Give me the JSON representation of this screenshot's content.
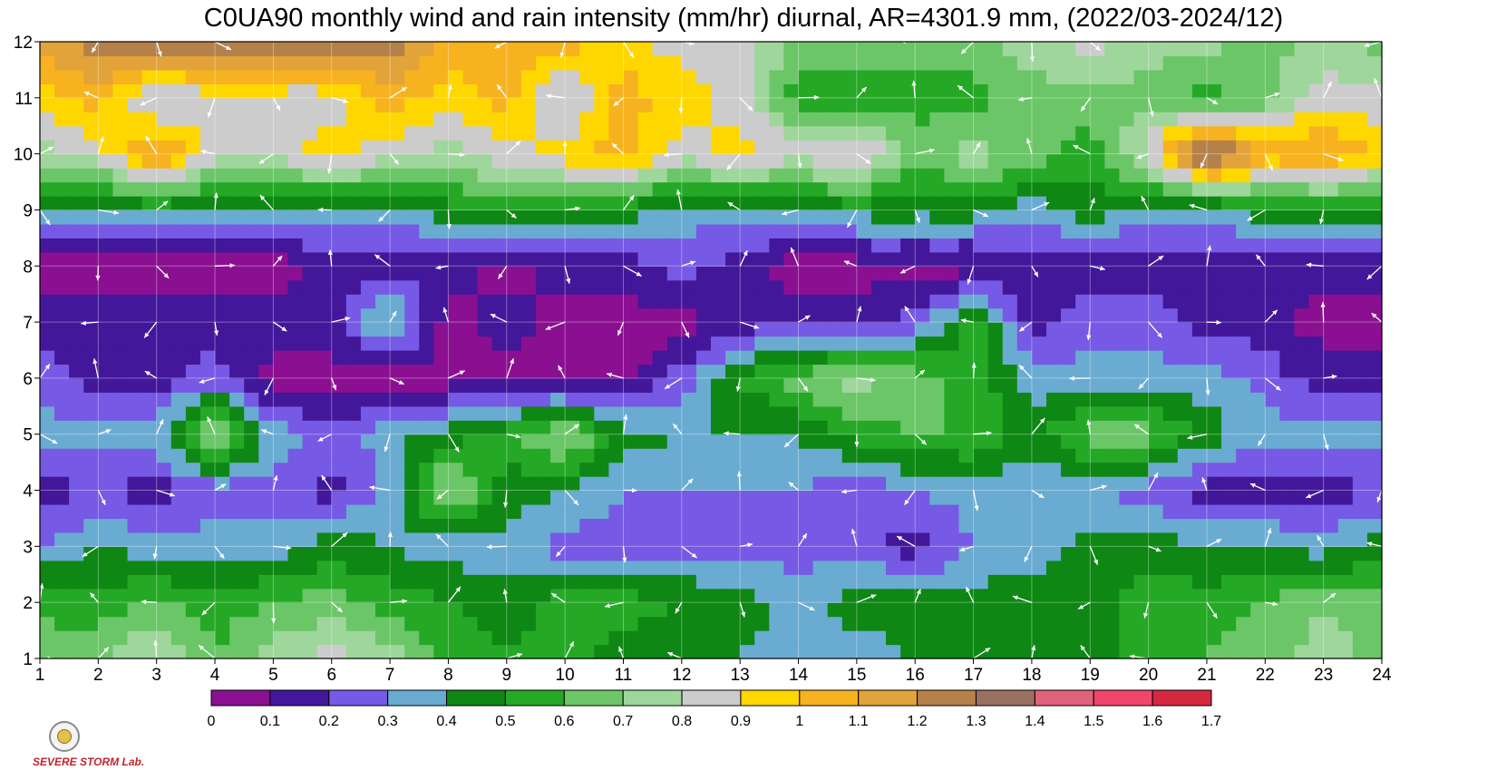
{
  "title": "C0UA90 monthly wind and rain intensity (mm/hr) diurnal, AR=4301.9 mm, (2022/03-2024/12)",
  "logo": {
    "text_lines": [
      "SEVERE",
      "STORM",
      "Lab."
    ]
  },
  "chart_data": {
    "type": "heatmap",
    "title": "C0UA90 monthly wind and rain intensity (mm/hr) diurnal, AR=4301.9 mm, (2022/03-2024/12)",
    "subtitle": "",
    "xlabel": "",
    "ylabel": "",
    "x": [
      1,
      2,
      3,
      4,
      5,
      6,
      7,
      8,
      9,
      10,
      11,
      12,
      13,
      14,
      15,
      16,
      17,
      18,
      19,
      20,
      21,
      22,
      23,
      24
    ],
    "y": [
      1,
      2,
      3,
      4,
      5,
      6,
      7,
      8,
      9,
      10,
      11,
      12
    ],
    "xlim": [
      1,
      24
    ],
    "ylim": [
      1,
      12
    ],
    "x_ticks": [
      "1",
      "2",
      "3",
      "4",
      "5",
      "6",
      "7",
      "8",
      "9",
      "10",
      "11",
      "12",
      "13",
      "14",
      "15",
      "16",
      "17",
      "18",
      "19",
      "20",
      "21",
      "22",
      "23",
      "24"
    ],
    "y_ticks": [
      "1",
      "2",
      "3",
      "4",
      "5",
      "6",
      "7",
      "8",
      "9",
      "10",
      "11",
      "12"
    ],
    "grid": true,
    "colorbar": {
      "position": "bottom",
      "tick_labels": [
        "0",
        "0.1",
        "0.2",
        "0.3",
        "0.4",
        "0.5",
        "0.6",
        "0.7",
        "0.8",
        "0.9",
        "1",
        "1.1",
        "1.2",
        "1.3",
        "1.4",
        "1.5",
        "1.6",
        "1.7"
      ],
      "levels": [
        0,
        0.1,
        0.2,
        0.3,
        0.4,
        0.5,
        0.6,
        0.7,
        0.8,
        0.9,
        1.0,
        1.1,
        1.2,
        1.3,
        1.4,
        1.5,
        1.6,
        1.7
      ],
      "colors": [
        "#8b0f91",
        "#43179a",
        "#7659e4",
        "#6aabd2",
        "#0e8714",
        "#25a826",
        "#6bc667",
        "#9fd69c",
        "#cccccc",
        "#ffd700",
        "#f7b21f",
        "#e2a33a",
        "#b4814a",
        "#997160",
        "#e1627c",
        "#f0466b",
        "#d4283f"
      ]
    },
    "rows": [
      {
        "month": 1,
        "values": [
          0.7,
          0.65,
          0.85,
          0.6,
          0.75,
          0.85,
          0.75,
          0.55,
          0.5,
          0.55,
          0.45,
          0.4,
          0.4,
          0.35,
          0.35,
          0.4,
          0.45,
          0.45,
          0.45,
          0.55,
          0.6,
          0.65,
          0.75,
          0.65
        ]
      },
      {
        "month": 2,
        "values": [
          0.55,
          0.55,
          0.6,
          0.55,
          0.6,
          0.65,
          0.55,
          0.5,
          0.45,
          0.55,
          0.55,
          0.5,
          0.45,
          0.35,
          0.45,
          0.45,
          0.45,
          0.45,
          0.45,
          0.55,
          0.55,
          0.6,
          0.7,
          0.65
        ]
      },
      {
        "month": 3,
        "values": [
          0.3,
          0.4,
          0.35,
          0.35,
          0.35,
          0.45,
          0.4,
          0.35,
          0.35,
          0.25,
          0.25,
          0.25,
          0.25,
          0.25,
          0.25,
          0.15,
          0.3,
          0.35,
          0.45,
          0.45,
          0.4,
          0.4,
          0.35,
          0.45
        ]
      },
      {
        "month": 4,
        "values": [
          0.15,
          0.2,
          0.15,
          0.25,
          0.25,
          0.15,
          0.35,
          0.75,
          0.45,
          0.4,
          0.3,
          0.3,
          0.3,
          0.3,
          0.2,
          0.3,
          0.35,
          0.3,
          0.3,
          0.25,
          0.15,
          0.15,
          0.15,
          0.2
        ]
      },
      {
        "month": 5,
        "values": [
          0.35,
          0.35,
          0.35,
          0.75,
          0.35,
          0.25,
          0.35,
          0.45,
          0.55,
          0.75,
          0.45,
          0.4,
          0.4,
          0.4,
          0.55,
          0.6,
          0.6,
          0.45,
          0.65,
          0.65,
          0.45,
          0.35,
          0.35,
          0.35
        ]
      },
      {
        "month": 6,
        "values": [
          0.25,
          0.15,
          0.15,
          0.25,
          0.05,
          0.05,
          0.05,
          0.05,
          0.05,
          0.05,
          0.05,
          0.25,
          0.5,
          0.65,
          0.75,
          0.65,
          0.55,
          0.35,
          0.35,
          0.35,
          0.35,
          0.25,
          0.15,
          0.15
        ]
      },
      {
        "month": 7,
        "values": [
          0.15,
          0.15,
          0.15,
          0.15,
          0.15,
          0.15,
          0.45,
          0.05,
          0.15,
          0.05,
          0.05,
          0.05,
          0.15,
          0.15,
          0.15,
          0.25,
          0.55,
          0.15,
          0.25,
          0.25,
          0.15,
          0.15,
          0.05,
          0.05
        ]
      },
      {
        "month": 8,
        "values": [
          0.05,
          0.05,
          0.05,
          0.05,
          0.05,
          0.15,
          0.15,
          0.15,
          0.05,
          0.15,
          0.15,
          0.25,
          0.15,
          0.05,
          0.05,
          0.05,
          0.05,
          0.15,
          0.15,
          0.15,
          0.15,
          0.15,
          0.15,
          0.15
        ]
      },
      {
        "month": 9,
        "values": [
          0.45,
          0.35,
          0.45,
          0.35,
          0.35,
          0.35,
          0.35,
          0.45,
          0.55,
          0.55,
          0.45,
          0.35,
          0.35,
          0.35,
          0.45,
          0.45,
          0.45,
          0.35,
          0.45,
          0.35,
          0.35,
          0.45,
          0.45,
          0.45
        ]
      },
      {
        "month": 10,
        "values": [
          0.75,
          0.85,
          1.15,
          0.85,
          0.85,
          0.95,
          0.85,
          0.75,
          0.85,
          0.95,
          1.05,
          0.85,
          0.95,
          0.85,
          0.95,
          0.65,
          0.75,
          0.65,
          0.55,
          0.85,
          1.45,
          1.05,
          1.15,
          0.95
        ]
      },
      {
        "month": 11,
        "values": [
          0.95,
          1.05,
          0.75,
          0.85,
          0.85,
          0.85,
          1.05,
          0.95,
          1.05,
          0.75,
          1.05,
          0.95,
          0.85,
          0.55,
          0.55,
          0.55,
          0.55,
          0.65,
          0.65,
          0.65,
          0.55,
          0.65,
          0.85,
          0.85
        ]
      },
      {
        "month": 12,
        "values": [
          1.15,
          1.25,
          1.35,
          1.35,
          1.25,
          1.25,
          1.25,
          1.05,
          1.05,
          1.05,
          0.95,
          0.85,
          0.85,
          0.65,
          0.65,
          0.65,
          0.65,
          0.75,
          0.85,
          0.75,
          0.75,
          0.65,
          0.75,
          0.65
        ]
      }
    ]
  }
}
